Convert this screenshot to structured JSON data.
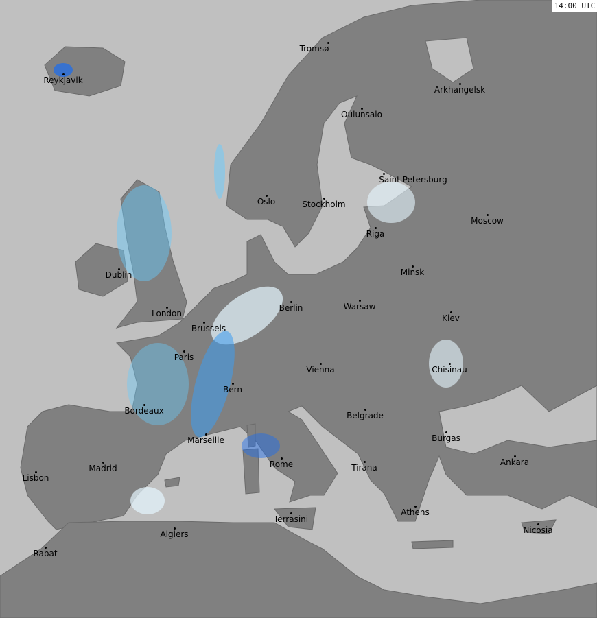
{
  "timestamp": "14:00 UTC",
  "colors": {
    "sea": "#c0c0c0",
    "land": "#808080",
    "light_rain": "#e6f6ff",
    "moderate_rain": "#66ccff",
    "heavy_rain": "#1a6cf0"
  },
  "cities": [
    "Tromsø",
    "Reykjavik",
    "Arkhangelsk",
    "Oulunsalo",
    "Saint Petersburg",
    "Oslo",
    "Stockholm",
    "Moscow",
    "Riga",
    "Dublin",
    "Minsk",
    "Berlin",
    "Warsaw",
    "London",
    "Kiev",
    "Brussels",
    "Paris",
    "Vienna",
    "Chisinau",
    "Bern",
    "Bordeaux",
    "Belgrade",
    "Burgas",
    "Marseille",
    "Ankara",
    "Rome",
    "Madrid",
    "Tirana",
    "Lisbon",
    "Athens",
    "Terrasini",
    "Nicosia",
    "Algiers",
    "Rabat"
  ]
}
